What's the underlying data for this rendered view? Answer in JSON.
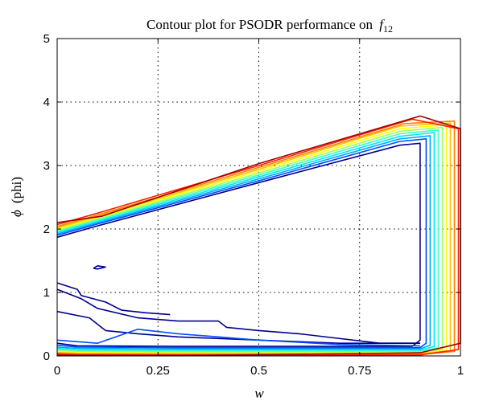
{
  "chart_data": {
    "type": "contour",
    "title": "Contour plot for PSODR performance on",
    "title_math": "f",
    "title_subscript": "12",
    "xlabel": "w",
    "ylabel_symbol": "ϕ",
    "ylabel_text": "(phi)",
    "xlim": [
      0,
      1
    ],
    "ylim": [
      0,
      5
    ],
    "xticks": [
      0,
      0.25,
      0.5,
      0.75,
      1
    ],
    "xtick_labels": [
      "0",
      "0.25",
      "0.5",
      "0.75",
      "1"
    ],
    "yticks": [
      0,
      1,
      2,
      3,
      4,
      5
    ],
    "ytick_labels": [
      "0",
      "1",
      "2",
      "3",
      "4",
      "5"
    ],
    "grid": true,
    "colors": [
      "#00008f",
      "#0050ff",
      "#00aaff",
      "#00e8ff",
      "#40ffbf",
      "#a0ff60",
      "#ffff00",
      "#ffc000",
      "#ff8000",
      "#ff2000",
      "#a00000"
    ],
    "contours": {
      "outer_levels": [
        {
          "color": "#00008f",
          "points": [
            [
              0,
              1.87
            ],
            [
              0.1,
              2.05
            ],
            [
              0.5,
              2.73
            ],
            [
              0.85,
              3.32
            ],
            [
              0.9,
              3.35
            ],
            [
              0.9,
              0.25
            ],
            [
              0.88,
              0.15
            ],
            [
              0.3,
              0.15
            ],
            [
              0.05,
              0.16
            ],
            [
              0,
              0.2
            ]
          ]
        },
        {
          "color": "#0050ff",
          "points": [
            [
              0,
              1.9
            ],
            [
              0.1,
              2.08
            ],
            [
              0.5,
              2.76
            ],
            [
              0.85,
              3.38
            ],
            [
              0.915,
              3.42
            ],
            [
              0.915,
              0.2
            ],
            [
              0.9,
              0.13
            ],
            [
              0.3,
              0.13
            ],
            [
              0.05,
              0.14
            ],
            [
              0,
              0.17
            ]
          ]
        },
        {
          "color": "#00aaff",
          "points": [
            [
              0,
              1.92
            ],
            [
              0.1,
              2.1
            ],
            [
              0.5,
              2.79
            ],
            [
              0.85,
              3.42
            ],
            [
              0.925,
              3.47
            ],
            [
              0.925,
              0.17
            ],
            [
              0.9,
              0.11
            ],
            [
              0.3,
              0.11
            ],
            [
              0.05,
              0.12
            ],
            [
              0,
              0.14
            ]
          ]
        },
        {
          "color": "#00e8ff",
          "points": [
            [
              0,
              1.94
            ],
            [
              0.1,
              2.12
            ],
            [
              0.5,
              2.82
            ],
            [
              0.85,
              3.46
            ],
            [
              0.935,
              3.52
            ],
            [
              0.935,
              0.15
            ],
            [
              0.9,
              0.09
            ],
            [
              0.3,
              0.09
            ],
            [
              0.05,
              0.1
            ],
            [
              0,
              0.12
            ]
          ]
        },
        {
          "color": "#40ffbf",
          "points": [
            [
              0,
              1.96
            ],
            [
              0.1,
              2.14
            ],
            [
              0.5,
              2.85
            ],
            [
              0.85,
              3.5
            ],
            [
              0.945,
              3.56
            ],
            [
              0.945,
              0.13
            ],
            [
              0.9,
              0.075
            ],
            [
              0.3,
              0.075
            ],
            [
              0.05,
              0.085
            ],
            [
              0,
              0.1
            ]
          ]
        },
        {
          "color": "#a0ff60",
          "points": [
            [
              0,
              1.98
            ],
            [
              0.1,
              2.16
            ],
            [
              0.5,
              2.88
            ],
            [
              0.85,
              3.54
            ],
            [
              0.955,
              3.6
            ],
            [
              0.955,
              0.11
            ],
            [
              0.9,
              0.06
            ],
            [
              0.3,
              0.06
            ],
            [
              0.05,
              0.07
            ],
            [
              0,
              0.085
            ]
          ]
        },
        {
          "color": "#ffff00",
          "points": [
            [
              0,
              2.0
            ],
            [
              0.1,
              2.18
            ],
            [
              0.5,
              2.91
            ],
            [
              0.85,
              3.58
            ],
            [
              0.965,
              3.64
            ],
            [
              0.965,
              0.09
            ],
            [
              0.9,
              0.045
            ],
            [
              0.3,
              0.045
            ],
            [
              0.05,
              0.055
            ],
            [
              0,
              0.07
            ]
          ]
        },
        {
          "color": "#ffc000",
          "points": [
            [
              0,
              2.02
            ],
            [
              0.1,
              2.2
            ],
            [
              0.5,
              2.94
            ],
            [
              0.85,
              3.62
            ],
            [
              0.975,
              3.67
            ],
            [
              0.975,
              0.08
            ],
            [
              0.9,
              0.035
            ],
            [
              0.3,
              0.035
            ],
            [
              0.05,
              0.04
            ],
            [
              0,
              0.055
            ]
          ]
        },
        {
          "color": "#ff8000",
          "points": [
            [
              0,
              2.04
            ],
            [
              0.1,
              2.22
            ],
            [
              0.5,
              2.97
            ],
            [
              0.86,
              3.66
            ],
            [
              0.985,
              3.7
            ],
            [
              0.985,
              0.07
            ],
            [
              0.9,
              0.025
            ],
            [
              0.3,
              0.025
            ],
            [
              0.05,
              0.03
            ],
            [
              0,
              0.04
            ]
          ]
        },
        {
          "color": "#ff2000",
          "points": [
            [
              0,
              2.07
            ],
            [
              0.1,
              2.25
            ],
            [
              0.5,
              3.0
            ],
            [
              0.88,
              3.73
            ],
            [
              0.995,
              3.58
            ],
            [
              0.995,
              0.1
            ],
            [
              0.9,
              0.015
            ],
            [
              0.3,
              0.015
            ],
            [
              0.05,
              0.02
            ],
            [
              0,
              0.03
            ]
          ]
        },
        {
          "color": "#a00000",
          "points": [
            [
              0,
              2.1
            ],
            [
              0.11,
              2.2
            ],
            [
              0.5,
              3.03
            ],
            [
              0.9,
              3.78
            ],
            [
              1.0,
              3.58
            ],
            [
              1.0,
              0.2
            ],
            [
              0.9,
              0.05
            ],
            [
              0.3,
              0.005
            ],
            [
              0,
              0.01
            ]
          ]
        }
      ],
      "inner_levels": [
        {
          "color": "#00008f",
          "points": [
            [
              0,
              1.05
            ],
            [
              0.06,
              0.9
            ],
            [
              0.1,
              0.75
            ],
            [
              0.2,
              0.6
            ],
            [
              0.3,
              0.55
            ],
            [
              0.4,
              0.55
            ],
            [
              0.42,
              0.45
            ],
            [
              0.5,
              0.4
            ],
            [
              0.6,
              0.35
            ],
            [
              0.8,
              0.2
            ],
            [
              0.9,
              0.2
            ]
          ]
        },
        {
          "color": "#00008f",
          "points": [
            [
              0,
              1.15
            ],
            [
              0.05,
              1.05
            ],
            [
              0.06,
              0.95
            ],
            [
              0.12,
              0.85
            ],
            [
              0.16,
              0.72
            ],
            [
              0.22,
              0.68
            ],
            [
              0.28,
              0.65
            ]
          ]
        },
        {
          "color": "#00008f",
          "points": [
            [
              0,
              0.7
            ],
            [
              0.08,
              0.6
            ],
            [
              0.1,
              0.5
            ],
            [
              0.12,
              0.4
            ],
            [
              0.2,
              0.35
            ],
            [
              0.3,
              0.3
            ],
            [
              0.5,
              0.25
            ],
            [
              0.7,
              0.2
            ],
            [
              0.9,
              0.2
            ]
          ]
        },
        {
          "color": "#0050ff",
          "points": [
            [
              0,
              0.25
            ],
            [
              0.1,
              0.2
            ],
            [
              0.2,
              0.42
            ],
            [
              0.3,
              0.35
            ],
            [
              0.5,
              0.25
            ],
            [
              0.7,
              0.18
            ],
            [
              0.9,
              0.16
            ]
          ]
        },
        {
          "color": "#00008f",
          "points": [
            [
              0.09,
              1.38
            ],
            [
              0.1,
              1.42
            ],
            [
              0.12,
              1.4
            ],
            [
              0.1,
              1.37
            ],
            [
              0.09,
              1.38
            ]
          ]
        }
      ]
    }
  }
}
